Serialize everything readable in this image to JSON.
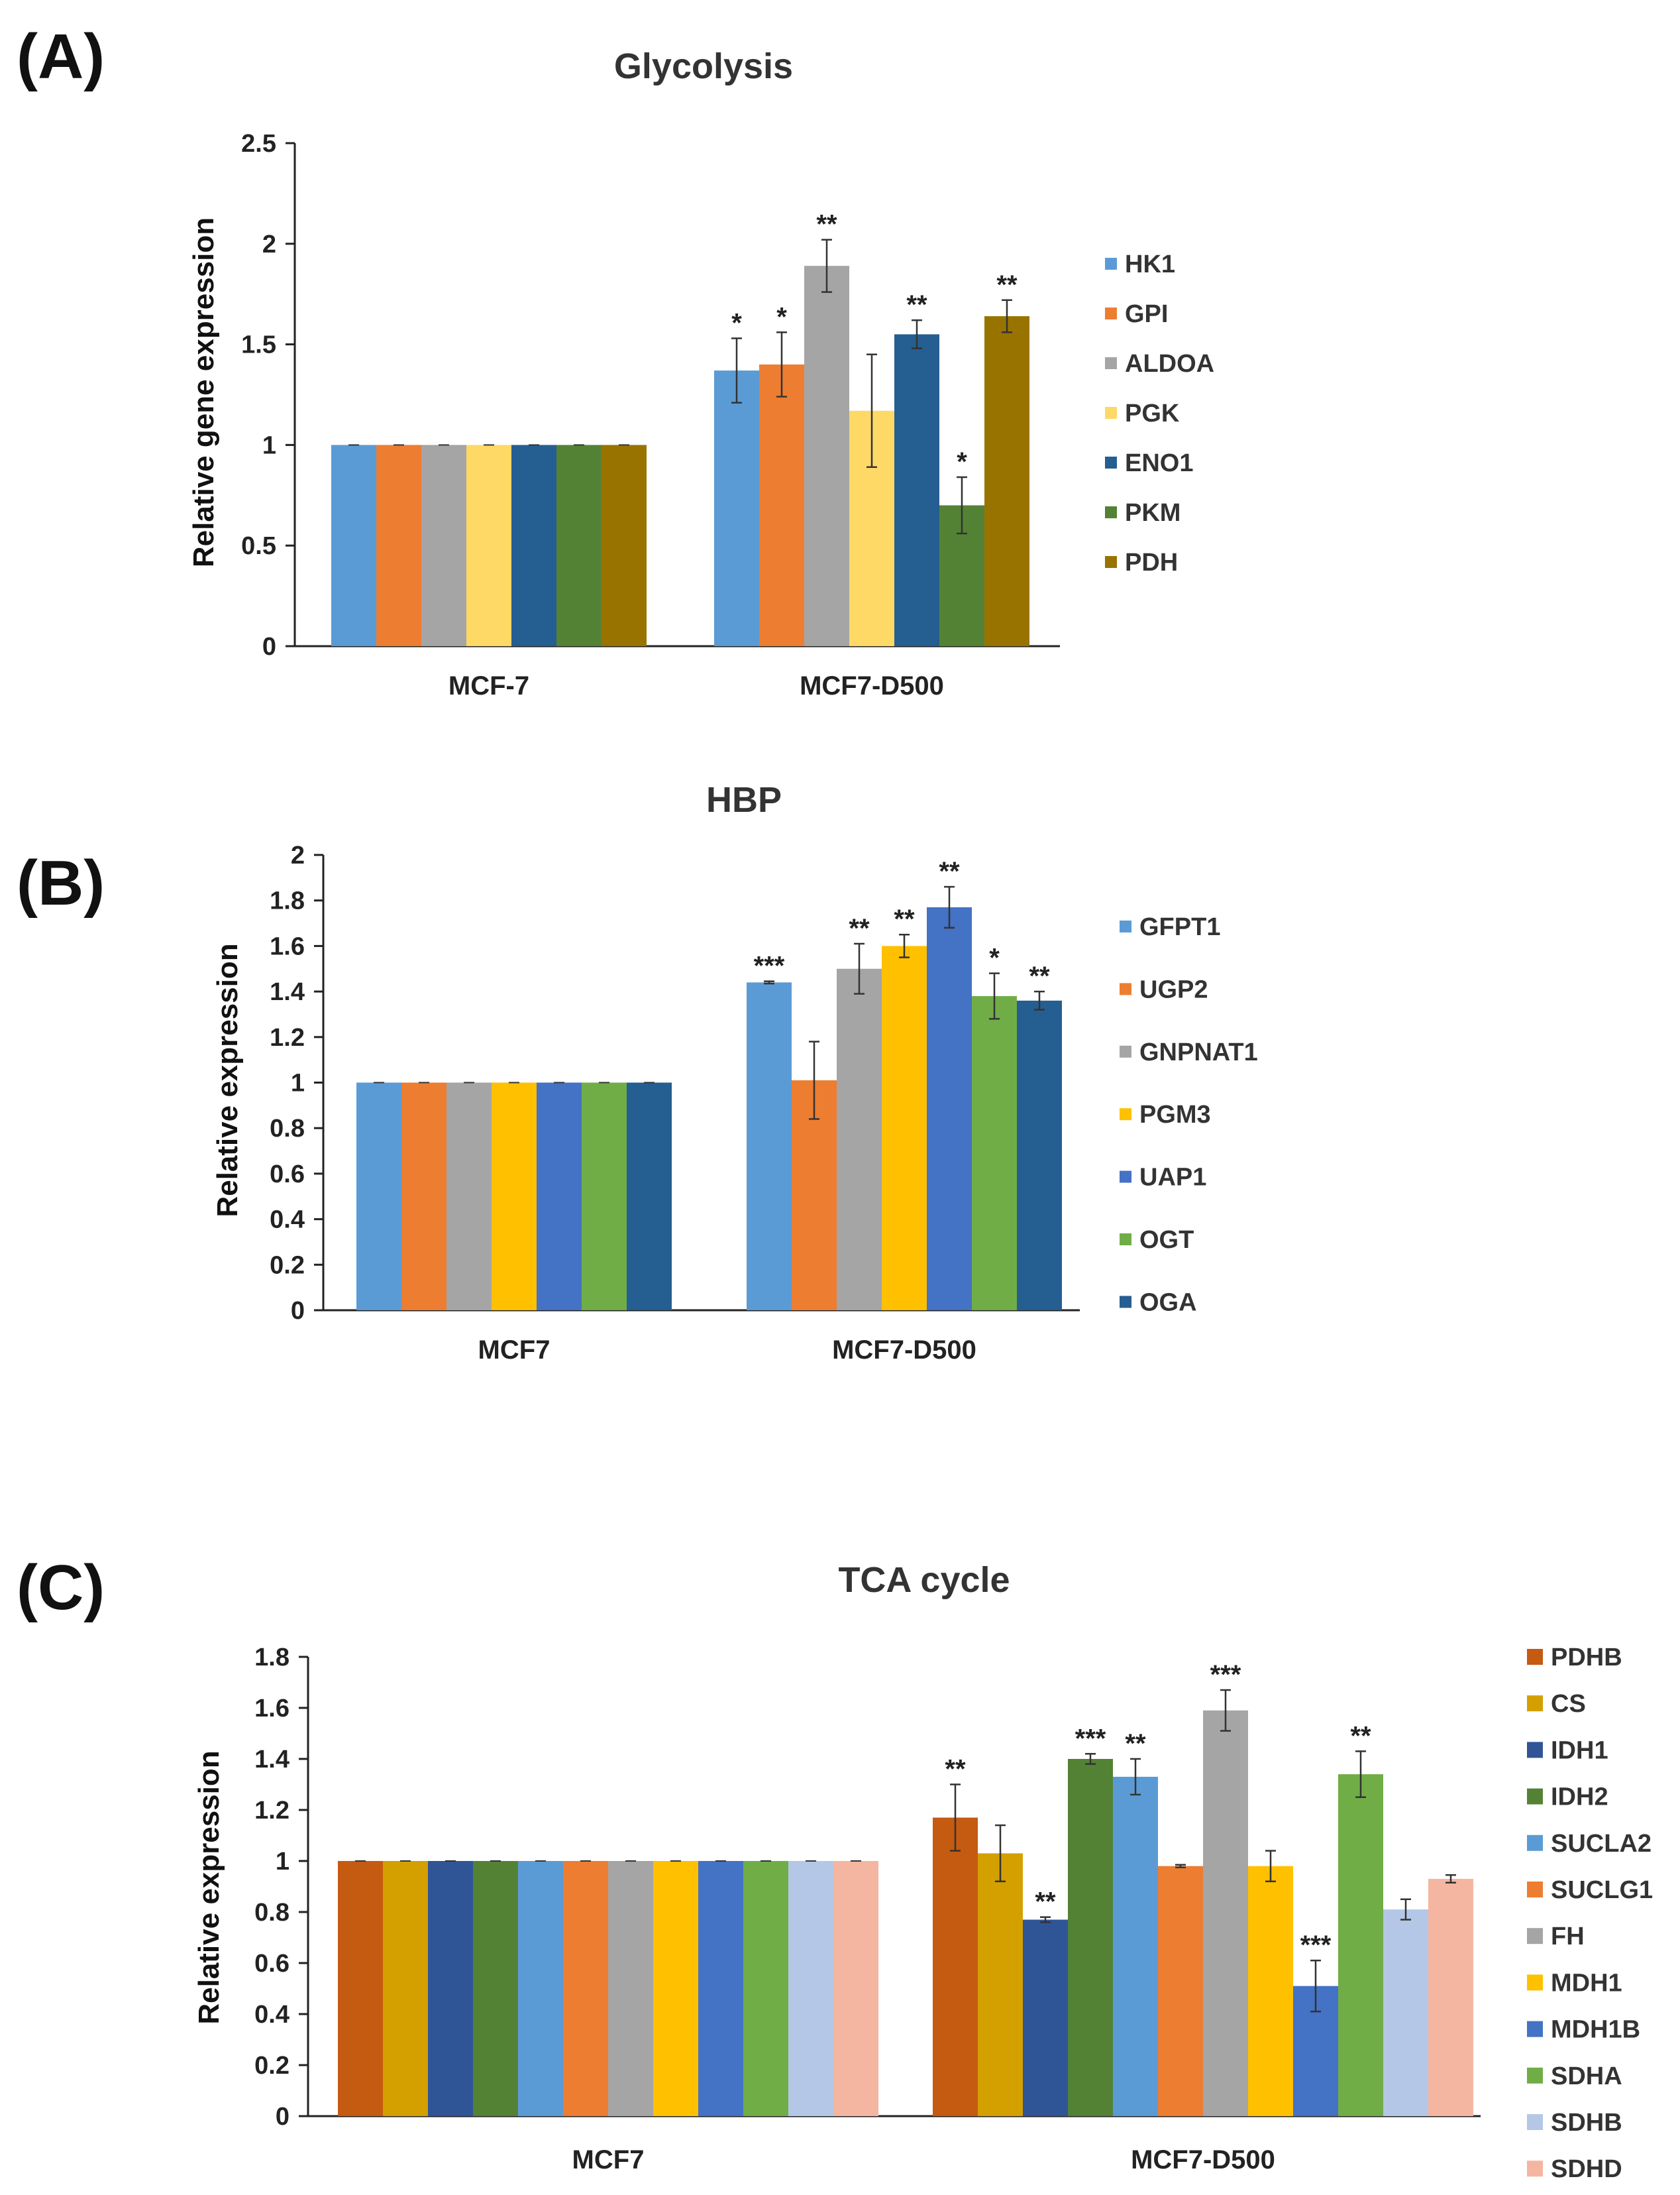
{
  "chart_data": [
    {
      "type": "bar",
      "panel": "(A)",
      "title": "Glycolysis",
      "xlabel": "",
      "ylabel": "Relative gene expression",
      "ylim": [
        0,
        2.5
      ],
      "yticks": [
        "0",
        "0.5",
        "1",
        "1.5",
        "2",
        "2.5"
      ],
      "ytick_values": [
        0,
        0.5,
        1,
        1.5,
        2,
        2.5
      ],
      "categories": [
        "MCF-7",
        "MCF7-D500"
      ],
      "series": [
        {
          "name": "HK1",
          "color": "#5b9bd5",
          "values": [
            1,
            1.37
          ],
          "errors": [
            0,
            0.16
          ],
          "sig": [
            "",
            "*"
          ]
        },
        {
          "name": "GPI",
          "color": "#ed7d31",
          "values": [
            1,
            1.4
          ],
          "errors": [
            0,
            0.16
          ],
          "sig": [
            "",
            "*"
          ]
        },
        {
          "name": "ALDOA",
          "color": "#a5a5a5",
          "values": [
            1,
            1.89
          ],
          "errors": [
            0,
            0.13
          ],
          "sig": [
            "",
            "**"
          ]
        },
        {
          "name": "PGK",
          "color": "#ffd966",
          "values": [
            1,
            1.17
          ],
          "errors": [
            0,
            0.28
          ],
          "sig": [
            "",
            ""
          ]
        },
        {
          "name": "ENO1",
          "color": "#255e91",
          "values": [
            1,
            1.55
          ],
          "errors": [
            0,
            0.07
          ],
          "sig": [
            "",
            "**"
          ]
        },
        {
          "name": "PKM",
          "color": "#548235",
          "values": [
            1,
            0.7
          ],
          "errors": [
            0,
            0.14
          ],
          "sig": [
            "",
            "*"
          ]
        },
        {
          "name": "PDH",
          "color": "#997300",
          "values": [
            1,
            1.64
          ],
          "errors": [
            0,
            0.08
          ],
          "sig": [
            "",
            "**"
          ]
        }
      ],
      "legend": "right"
    },
    {
      "type": "bar",
      "panel": "(B)",
      "title": "HBP",
      "xlabel": "",
      "ylabel": "Relative expression",
      "ylim": [
        0,
        2
      ],
      "yticks": [
        "0",
        "0.2",
        "0.4",
        "0.6",
        "0.8",
        "1",
        "1.2",
        "1.4",
        "1.6",
        "1.8",
        "2"
      ],
      "ytick_values": [
        0,
        0.2,
        0.4,
        0.6,
        0.8,
        1,
        1.2,
        1.4,
        1.6,
        1.8,
        2
      ],
      "categories": [
        "MCF7",
        "MCF7-D500"
      ],
      "series": [
        {
          "name": "GFPT1",
          "color": "#5b9bd5",
          "values": [
            1,
            1.44
          ],
          "errors": [
            0,
            0.005
          ],
          "sig": [
            "",
            "***"
          ]
        },
        {
          "name": "UGP2",
          "color": "#ed7d31",
          "values": [
            1,
            1.01
          ],
          "errors": [
            0,
            0.17
          ],
          "sig": [
            "",
            ""
          ]
        },
        {
          "name": "GNPNAT1",
          "color": "#a5a5a5",
          "values": [
            1,
            1.5
          ],
          "errors": [
            0,
            0.11
          ],
          "sig": [
            "",
            "**"
          ]
        },
        {
          "name": "PGM3",
          "color": "#ffc000",
          "values": [
            1,
            1.6
          ],
          "errors": [
            0,
            0.05
          ],
          "sig": [
            "",
            "**"
          ]
        },
        {
          "name": "UAP1",
          "color": "#4472c4",
          "values": [
            1,
            1.77
          ],
          "errors": [
            0,
            0.09
          ],
          "sig": [
            "",
            "**"
          ]
        },
        {
          "name": "OGT",
          "color": "#70ad47",
          "values": [
            1,
            1.38
          ],
          "errors": [
            0,
            0.1
          ],
          "sig": [
            "",
            "*"
          ]
        },
        {
          "name": "OGA",
          "color": "#255e91",
          "values": [
            1,
            1.36
          ],
          "errors": [
            0,
            0.04
          ],
          "sig": [
            "",
            "**"
          ]
        }
      ],
      "legend": "right"
    },
    {
      "type": "bar",
      "panel": "(C)",
      "title": "TCA cycle",
      "xlabel": "",
      "ylabel": "Relative expression",
      "ylim": [
        0,
        1.8
      ],
      "yticks": [
        "0",
        "0.2",
        "0.4",
        "0.6",
        "0.8",
        "1",
        "1.2",
        "1.4",
        "1.6",
        "1.8"
      ],
      "ytick_values": [
        0,
        0.2,
        0.4,
        0.6,
        0.8,
        1,
        1.2,
        1.4,
        1.6,
        1.8
      ],
      "categories": [
        "MCF7",
        "MCF7-D500"
      ],
      "series": [
        {
          "name": "PDHB",
          "color": "#c55a11",
          "values": [
            1,
            1.17
          ],
          "errors": [
            0,
            0.13
          ],
          "sig": [
            "",
            "**"
          ]
        },
        {
          "name": "CS",
          "color": "#d4a000",
          "values": [
            1,
            1.03
          ],
          "errors": [
            0,
            0.11
          ],
          "sig": [
            "",
            ""
          ]
        },
        {
          "name": "IDH1",
          "color": "#2f5597",
          "values": [
            1,
            0.77
          ],
          "errors": [
            0,
            0.01
          ],
          "sig": [
            "",
            "**"
          ]
        },
        {
          "name": "IDH2",
          "color": "#548235",
          "values": [
            1,
            1.4
          ],
          "errors": [
            0,
            0.02
          ],
          "sig": [
            "",
            "***"
          ]
        },
        {
          "name": "SUCLA2",
          "color": "#5b9bd5",
          "values": [
            1,
            1.33
          ],
          "errors": [
            0,
            0.07
          ],
          "sig": [
            "",
            "**"
          ]
        },
        {
          "name": "SUCLG1",
          "color": "#ed7d31",
          "values": [
            1,
            0.98
          ],
          "errors": [
            0,
            0.005
          ],
          "sig": [
            "",
            ""
          ]
        },
        {
          "name": "FH",
          "color": "#a5a5a5",
          "values": [
            1,
            1.59
          ],
          "errors": [
            0,
            0.08
          ],
          "sig": [
            "",
            "***"
          ]
        },
        {
          "name": "MDH1",
          "color": "#ffc000",
          "values": [
            1,
            0.98
          ],
          "errors": [
            0,
            0.06
          ],
          "sig": [
            "",
            ""
          ]
        },
        {
          "name": "MDH1B",
          "color": "#4472c4",
          "values": [
            1,
            0.51
          ],
          "errors": [
            0,
            0.1
          ],
          "sig": [
            "",
            "***"
          ]
        },
        {
          "name": "SDHA",
          "color": "#70ad47",
          "values": [
            1,
            1.34
          ],
          "errors": [
            0,
            0.09
          ],
          "sig": [
            "",
            "**"
          ]
        },
        {
          "name": "SDHB",
          "color": "#b4c7e7",
          "values": [
            1,
            0.81
          ],
          "errors": [
            0,
            0.04
          ],
          "sig": [
            "",
            ""
          ]
        },
        {
          "name": "SDHD",
          "color": "#f4b6a0",
          "values": [
            1,
            0.93
          ],
          "errors": [
            0,
            0.015
          ],
          "sig": [
            "",
            ""
          ]
        }
      ],
      "legend": "right"
    }
  ]
}
